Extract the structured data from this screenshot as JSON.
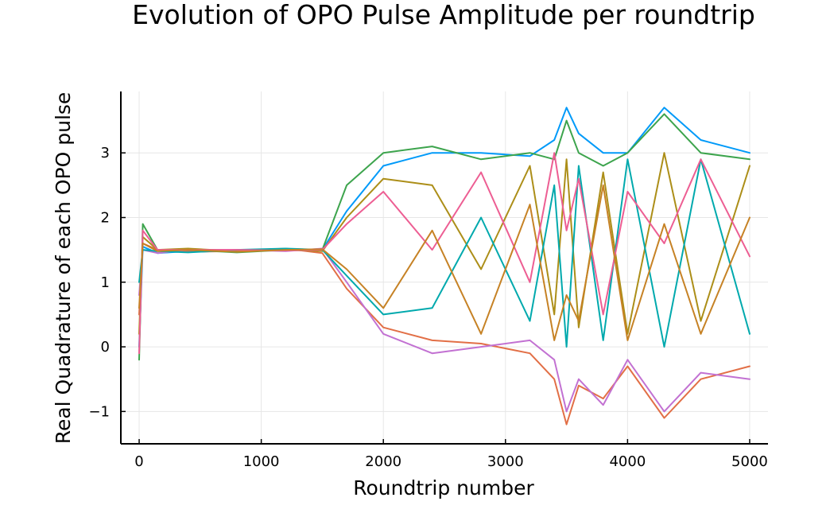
{
  "chart_data": {
    "type": "line",
    "title": "Evolution of OPO Pulse Amplitude per roundtrip",
    "xlabel": "Roundtrip number",
    "ylabel": "Real Quadrature of each OPO pulse",
    "xlim": [
      -150,
      5150
    ],
    "ylim": [
      -1.5,
      3.95
    ],
    "xticks": [
      0,
      1000,
      2000,
      3000,
      4000,
      5000
    ],
    "xtick_labels": [
      "0",
      "1000",
      "2000",
      "3000",
      "4000",
      "5000"
    ],
    "yticks": [
      -1,
      0,
      1,
      2,
      3
    ],
    "ytick_labels": [
      "−1",
      "0",
      "1",
      "2",
      "3"
    ],
    "grid": true,
    "legend": "none",
    "palette": [
      "#009af9",
      "#e26f46",
      "#3da44d",
      "#c271d2",
      "#ac8e18",
      "#00a9ad",
      "#ed5e93",
      "#c68225"
    ],
    "series": [
      {
        "x": [
          0,
          30,
          150,
          400,
          800,
          1200,
          1500,
          1700,
          2000,
          2400,
          2800,
          3200,
          3400,
          3500,
          3600,
          3800,
          4000,
          4300,
          4600,
          5000
        ],
        "values": [
          0,
          1.55,
          1.45,
          1.48,
          1.5,
          1.5,
          1.5,
          2.1,
          2.8,
          3.0,
          3.0,
          2.95,
          3.2,
          3.7,
          3.3,
          3.0,
          3.0,
          3.7,
          3.2,
          3.0
        ]
      },
      {
        "x": [
          0,
          30,
          150,
          400,
          800,
          1200,
          1500,
          1700,
          2000,
          2400,
          2800,
          3200,
          3400,
          3500,
          3600,
          3800,
          4000,
          4300,
          4600,
          5000
        ],
        "values": [
          0.5,
          1.6,
          1.5,
          1.47,
          1.48,
          1.52,
          1.45,
          0.9,
          0.3,
          0.1,
          0.05,
          -0.1,
          -0.5,
          -1.2,
          -0.6,
          -0.8,
          -0.3,
          -1.1,
          -0.5,
          -0.3
        ]
      },
      {
        "x": [
          0,
          30,
          150,
          400,
          800,
          1200,
          1500,
          1700,
          2000,
          2400,
          2800,
          3200,
          3400,
          3500,
          3600,
          3800,
          4000,
          4300,
          4600,
          5000
        ],
        "values": [
          -0.2,
          1.9,
          1.5,
          1.5,
          1.46,
          1.5,
          1.5,
          2.5,
          3.0,
          3.1,
          2.9,
          3.0,
          2.9,
          3.5,
          3.0,
          2.8,
          3.0,
          3.6,
          3.0,
          2.9
        ]
      },
      {
        "x": [
          0,
          30,
          150,
          400,
          800,
          1200,
          1500,
          1700,
          2000,
          2400,
          2800,
          3200,
          3400,
          3500,
          3600,
          3800,
          4000,
          4300,
          4600,
          5000
        ],
        "values": [
          0.8,
          1.5,
          1.45,
          1.5,
          1.5,
          1.48,
          1.52,
          1.0,
          0.2,
          -0.1,
          0.0,
          0.1,
          -0.2,
          -1.0,
          -0.5,
          -0.9,
          -0.2,
          -1.0,
          -0.4,
          -0.5
        ]
      },
      {
        "x": [
          0,
          30,
          150,
          400,
          800,
          1200,
          1500,
          1700,
          2000,
          2400,
          2800,
          3200,
          3400,
          3500,
          3600,
          3800,
          4000,
          4300,
          4600,
          5000
        ],
        "values": [
          0.2,
          1.7,
          1.5,
          1.52,
          1.48,
          1.5,
          1.48,
          2.0,
          2.6,
          2.5,
          1.2,
          2.8,
          0.5,
          2.9,
          0.3,
          2.7,
          0.2,
          3.0,
          0.4,
          2.8
        ]
      },
      {
        "x": [
          0,
          30,
          150,
          400,
          800,
          1200,
          1500,
          1700,
          2000,
          2400,
          2800,
          3200,
          3400,
          3500,
          3600,
          3800,
          4000,
          4300,
          4600,
          5000
        ],
        "values": [
          1.0,
          1.5,
          1.48,
          1.46,
          1.5,
          1.52,
          1.5,
          1.1,
          0.5,
          0.6,
          2.0,
          0.4,
          2.5,
          0.0,
          2.8,
          0.1,
          2.9,
          0.0,
          2.9,
          0.2
        ]
      },
      {
        "x": [
          0,
          30,
          150,
          400,
          800,
          1200,
          1500,
          1700,
          2000,
          2400,
          2800,
          3200,
          3400,
          3500,
          3600,
          3800,
          4000,
          4300,
          4600,
          5000
        ],
        "values": [
          -0.1,
          1.8,
          1.5,
          1.5,
          1.5,
          1.49,
          1.5,
          1.9,
          2.4,
          1.5,
          2.7,
          1.0,
          3.0,
          1.8,
          2.6,
          0.5,
          2.4,
          1.6,
          2.9,
          1.4
        ]
      },
      {
        "x": [
          0,
          30,
          150,
          400,
          800,
          1200,
          1500,
          1700,
          2000,
          2400,
          2800,
          3200,
          3400,
          3500,
          3600,
          3800,
          4000,
          4300,
          4600,
          5000
        ],
        "values": [
          0.6,
          1.6,
          1.48,
          1.5,
          1.47,
          1.5,
          1.51,
          1.2,
          0.6,
          1.8,
          0.2,
          2.2,
          0.1,
          0.8,
          0.4,
          2.5,
          0.1,
          1.9,
          0.2,
          2.0
        ]
      }
    ]
  }
}
